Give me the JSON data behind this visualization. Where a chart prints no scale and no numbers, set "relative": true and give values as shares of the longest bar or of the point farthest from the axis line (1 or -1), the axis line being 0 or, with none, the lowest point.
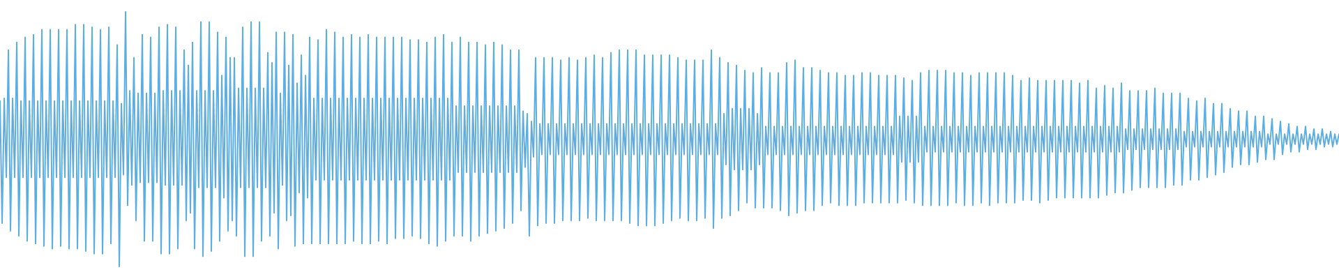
{
  "chart_data": {
    "type": "line",
    "relative": true,
    "line_style": "solid",
    "categories": [
      null,
      null,
      null,
      null,
      null,
      null,
      null,
      null,
      null,
      null,
      null,
      null,
      null,
      null,
      null,
      null,
      null,
      null,
      null,
      null,
      null,
      null,
      null,
      null,
      null,
      null,
      null,
      null,
      null,
      null,
      null,
      null,
      null,
      null,
      null,
      null,
      null,
      null,
      null,
      null,
      null,
      null,
      null,
      null,
      null,
      null,
      null,
      null,
      null,
      null,
      null,
      null,
      null,
      null,
      null,
      null,
      null,
      null,
      null,
      null,
      null,
      null,
      null,
      null,
      null,
      null,
      null,
      null,
      null,
      null,
      null,
      null,
      null,
      null,
      null,
      null,
      null,
      null,
      null,
      null,
      null,
      null,
      null,
      null,
      null,
      null,
      null,
      null,
      null,
      null,
      null,
      null,
      null,
      null,
      null,
      null,
      null,
      null,
      null,
      null,
      null,
      null,
      null,
      null,
      null,
      null,
      null,
      null,
      null,
      null,
      null,
      null,
      null,
      null,
      null,
      null,
      null,
      null,
      null,
      null,
      null,
      null,
      null,
      null,
      null,
      null,
      null,
      null,
      null,
      null,
      null,
      null,
      null,
      null,
      null,
      null,
      null,
      null,
      null,
      null,
      null,
      null,
      null,
      null,
      null,
      null,
      null,
      null,
      null,
      null,
      null,
      null,
      null,
      null,
      null,
      null,
      null,
      null,
      null,
      null,
      null,
      null,
      null,
      null,
      null,
      null,
      null,
      null,
      null,
      null,
      null,
      null,
      null,
      null,
      null,
      null,
      null,
      null,
      null,
      null,
      null,
      null,
      null,
      null,
      null,
      null,
      null,
      null,
      null,
      null,
      null,
      null,
      null,
      null,
      null,
      null,
      null,
      null,
      null,
      null,
      null,
      null,
      null,
      null,
      null,
      null,
      null,
      null,
      null,
      null,
      null,
      null,
      null,
      null,
      null,
      null,
      null,
      null,
      null,
      null,
      null,
      null,
      null,
      null,
      null,
      null,
      null,
      null,
      null,
      null,
      null,
      null,
      null,
      null,
      null,
      null,
      null,
      null,
      null,
      null,
      null,
      null,
      null,
      null,
      null,
      null,
      null,
      null,
      null,
      null,
      null,
      null,
      null,
      null,
      null,
      null,
      null,
      null,
      null,
      null,
      null,
      null,
      null,
      null,
      null,
      null,
      null,
      null,
      null,
      null,
      null,
      null,
      null,
      null,
      null,
      null,
      null,
      null,
      null,
      null,
      null,
      null,
      null,
      null,
      null,
      null,
      null,
      null,
      null,
      null,
      null,
      null,
      null,
      null,
      null,
      null,
      null,
      null,
      null,
      null,
      null,
      null,
      null,
      null,
      null,
      null,
      null,
      null,
      null,
      null,
      null,
      null,
      null,
      null,
      null,
      null,
      null,
      null,
      null,
      null,
      null,
      null,
      null,
      null,
      null,
      null,
      null,
      null,
      null,
      null,
      null,
      null,
      null,
      null,
      null,
      null,
      null,
      null,
      null,
      null,
      null,
      null,
      null,
      null,
      null,
      null,
      null,
      null,
      null,
      null,
      null,
      null,
      null,
      null,
      null,
      null,
      null,
      null,
      null,
      null,
      null,
      null,
      null,
      null,
      null,
      null,
      null,
      null,
      null,
      null,
      null,
      null,
      null,
      null,
      null,
      null,
      null,
      null,
      null,
      null,
      null,
      null,
      null,
      null,
      null,
      null,
      null,
      null,
      null,
      null,
      null,
      null,
      null,
      null,
      null,
      null,
      null,
      null,
      null,
      null,
      null,
      null,
      null,
      null,
      null,
      null,
      null,
      null,
      null,
      null,
      null,
      null,
      null,
      null,
      null,
      null,
      null,
      null,
      null,
      null,
      null,
      null,
      null,
      null,
      null,
      null,
      null,
      null,
      null,
      null,
      null,
      null,
      null,
      null,
      null,
      null,
      null,
      null,
      null,
      null,
      null,
      null,
      null,
      null,
      null,
      null,
      null,
      null,
      null,
      null,
      null,
      null,
      null,
      null,
      null,
      null,
      null,
      null,
      null,
      null,
      null,
      null,
      null,
      null,
      null,
      null,
      null,
      null,
      null,
      null,
      null,
      null,
      null,
      null,
      null,
      null,
      null,
      null,
      null,
      null,
      null,
      null,
      null,
      null,
      null,
      null,
      null,
      null,
      null,
      null,
      null,
      null,
      null,
      null,
      null,
      null,
      null,
      null,
      null,
      null,
      null,
      null,
      null,
      null,
      null,
      null,
      null,
      null,
      null,
      null,
      null,
      null,
      null,
      null,
      null,
      null,
      null,
      null,
      null,
      null,
      null,
      null,
      null,
      null,
      null,
      null,
      null,
      null,
      null,
      null,
      null,
      null,
      null,
      null,
      null,
      null,
      null,
      null,
      null,
      null,
      null,
      null,
      null,
      null,
      null,
      null,
      null,
      null,
      null,
      null,
      null,
      null,
      null,
      null,
      null,
      null,
      null,
      null,
      null,
      null,
      null,
      null,
      null,
      null,
      null,
      null,
      null,
      null,
      null,
      null,
      null,
      null,
      null,
      null,
      null,
      null,
      null,
      null,
      null,
      null,
      null,
      null,
      null,
      null,
      null,
      null,
      null,
      null,
      null,
      null,
      null,
      null,
      null,
      null,
      null,
      null,
      null,
      null,
      null,
      null,
      null,
      null,
      null,
      null,
      null,
      null,
      null,
      null,
      null,
      null,
      null,
      null,
      null,
      null,
      null,
      null,
      null,
      null,
      null,
      null,
      null,
      null,
      null,
      null,
      null,
      null,
      null,
      null,
      null,
      null,
      null,
      null,
      null,
      null,
      null,
      null,
      null,
      null,
      null,
      null,
      null
    ],
    "series": [
      {
        "color": "#5dade2",
        "values": [
          0.65,
          0.17,
          0.66,
          0.35,
          0.85,
          0.14,
          0.66,
          0.35,
          0.88,
          0.12,
          0.65,
          0.35,
          0.9,
          0.1,
          0.65,
          0.35,
          0.91,
          0.09,
          0.65,
          0.35,
          0.93,
          0.08,
          0.65,
          0.35,
          0.93,
          0.07,
          0.65,
          0.35,
          0.93,
          0.08,
          0.65,
          0.35,
          0.93,
          0.07,
          0.65,
          0.35,
          0.95,
          0.07,
          0.65,
          0.35,
          0.95,
          0.06,
          0.65,
          0.35,
          0.94,
          0.05,
          0.65,
          0.35,
          0.93,
          0.05,
          0.65,
          0.35,
          0.94,
          0.09,
          0.65,
          0.35,
          0.87,
          0.0,
          0.64,
          0.36,
          1.0,
          0.24,
          0.69,
          0.32,
          0.82,
          0.18,
          0.68,
          0.33,
          0.91,
          0.1,
          0.68,
          0.33,
          0.9,
          0.1,
          0.68,
          0.33,
          0.94,
          0.05,
          0.69,
          0.32,
          0.95,
          0.05,
          0.69,
          0.32,
          0.94,
          0.07,
          0.69,
          0.32,
          0.85,
          0.18,
          0.79,
          0.21,
          0.88,
          0.07,
          0.69,
          0.31,
          0.96,
          0.04,
          0.69,
          0.31,
          0.96,
          0.06,
          0.69,
          0.31,
          0.92,
          0.1,
          0.75,
          0.27,
          0.9,
          0.14,
          0.82,
          0.18,
          0.82,
          0.12,
          0.7,
          0.31,
          0.94,
          0.04,
          0.7,
          0.31,
          0.96,
          0.04,
          0.7,
          0.31,
          0.96,
          0.1,
          0.7,
          0.31,
          0.84,
          0.12,
          0.8,
          0.21,
          0.92,
          0.07,
          0.68,
          0.32,
          0.92,
          0.18,
          0.79,
          0.2,
          0.91,
          0.08,
          0.72,
          0.29,
          0.83,
          0.09,
          0.75,
          0.27,
          0.9,
          0.09,
          0.66,
          0.34,
          0.89,
          0.09,
          0.66,
          0.34,
          0.93,
          0.09,
          0.66,
          0.34,
          0.92,
          0.09,
          0.66,
          0.34,
          0.9,
          0.09,
          0.66,
          0.34,
          0.91,
          0.1,
          0.66,
          0.34,
          0.9,
          0.09,
          0.66,
          0.34,
          0.91,
          0.09,
          0.66,
          0.34,
          0.9,
          0.1,
          0.66,
          0.34,
          0.9,
          0.09,
          0.66,
          0.34,
          0.9,
          0.11,
          0.66,
          0.34,
          0.9,
          0.11,
          0.66,
          0.34,
          0.89,
          0.12,
          0.66,
          0.34,
          0.89,
          0.11,
          0.66,
          0.34,
          0.88,
          0.09,
          0.66,
          0.34,
          0.9,
          0.08,
          0.66,
          0.34,
          0.91,
          0.1,
          0.66,
          0.34,
          0.88,
          0.12,
          0.63,
          0.37,
          0.9,
          0.12,
          0.63,
          0.37,
          0.88,
          0.1,
          0.63,
          0.37,
          0.88,
          0.12,
          0.63,
          0.37,
          0.87,
          0.13,
          0.63,
          0.37,
          0.88,
          0.14,
          0.63,
          0.37,
          0.87,
          0.15,
          0.63,
          0.37,
          0.85,
          0.17,
          0.63,
          0.37,
          0.85,
          0.22,
          0.61,
          0.39,
          0.6,
          0.12,
          0.57,
          0.43,
          0.82,
          0.16,
          0.56,
          0.44,
          0.82,
          0.17,
          0.56,
          0.44,
          0.82,
          0.17,
          0.56,
          0.44,
          0.81,
          0.18,
          0.56,
          0.44,
          0.82,
          0.18,
          0.56,
          0.44,
          0.81,
          0.18,
          0.56,
          0.44,
          0.82,
          0.19,
          0.56,
          0.44,
          0.83,
          0.18,
          0.56,
          0.44,
          0.82,
          0.18,
          0.56,
          0.44,
          0.84,
          0.18,
          0.56,
          0.44,
          0.85,
          0.18,
          0.56,
          0.44,
          0.85,
          0.17,
          0.56,
          0.44,
          0.85,
          0.16,
          0.56,
          0.44,
          0.83,
          0.16,
          0.56,
          0.44,
          0.83,
          0.16,
          0.56,
          0.44,
          0.83,
          0.17,
          0.56,
          0.44,
          0.83,
          0.18,
          0.56,
          0.44,
          0.82,
          0.19,
          0.56,
          0.44,
          0.81,
          0.18,
          0.56,
          0.44,
          0.81,
          0.18,
          0.56,
          0.44,
          0.81,
          0.19,
          0.56,
          0.44,
          0.85,
          0.15,
          0.56,
          0.44,
          0.82,
          0.19,
          0.6,
          0.4,
          0.8,
          0.2,
          0.62,
          0.38,
          0.79,
          0.22,
          0.62,
          0.38,
          0.77,
          0.25,
          0.62,
          0.38,
          0.76,
          0.23,
          0.6,
          0.4,
          0.78,
          0.23,
          0.55,
          0.44,
          0.76,
          0.23,
          0.55,
          0.44,
          0.76,
          0.22,
          0.55,
          0.44,
          0.8,
          0.2,
          0.55,
          0.44,
          0.81,
          0.21,
          0.55,
          0.44,
          0.78,
          0.22,
          0.55,
          0.44,
          0.78,
          0.22,
          0.55,
          0.44,
          0.77,
          0.24,
          0.55,
          0.44,
          0.76,
          0.25,
          0.55,
          0.44,
          0.76,
          0.24,
          0.55,
          0.44,
          0.75,
          0.24,
          0.55,
          0.44,
          0.75,
          0.24,
          0.55,
          0.44,
          0.76,
          0.25,
          0.55,
          0.44,
          0.76,
          0.25,
          0.55,
          0.44,
          0.75,
          0.25,
          0.55,
          0.44,
          0.75,
          0.25,
          0.55,
          0.44,
          0.75,
          0.25,
          0.59,
          0.41,
          0.74,
          0.26,
          0.59,
          0.41,
          0.73,
          0.25,
          0.59,
          0.41,
          0.76,
          0.24,
          0.55,
          0.45,
          0.77,
          0.24,
          0.55,
          0.45,
          0.77,
          0.24,
          0.55,
          0.45,
          0.77,
          0.24,
          0.55,
          0.45,
          0.76,
          0.25,
          0.55,
          0.45,
          0.76,
          0.24,
          0.55,
          0.45,
          0.75,
          0.24,
          0.55,
          0.45,
          0.76,
          0.25,
          0.55,
          0.45,
          0.76,
          0.24,
          0.55,
          0.45,
          0.76,
          0.25,
          0.55,
          0.45,
          0.76,
          0.25,
          0.55,
          0.45,
          0.75,
          0.25,
          0.55,
          0.45,
          0.73,
          0.26,
          0.55,
          0.45,
          0.74,
          0.26,
          0.55,
          0.45,
          0.73,
          0.25,
          0.55,
          0.45,
          0.73,
          0.26,
          0.55,
          0.45,
          0.73,
          0.27,
          0.55,
          0.45,
          0.73,
          0.27,
          0.55,
          0.45,
          0.73,
          0.27,
          0.55,
          0.45,
          0.72,
          0.27,
          0.55,
          0.45,
          0.73,
          0.27,
          0.55,
          0.45,
          0.7,
          0.27,
          0.55,
          0.45,
          0.71,
          0.28,
          0.55,
          0.45,
          0.7,
          0.29,
          0.55,
          0.45,
          0.72,
          0.29,
          0.54,
          0.46,
          0.69,
          0.3,
          0.54,
          0.46,
          0.69,
          0.31,
          0.54,
          0.46,
          0.69,
          0.31,
          0.54,
          0.46,
          0.7,
          0.31,
          0.54,
          0.46,
          0.68,
          0.31,
          0.54,
          0.46,
          0.68,
          0.32,
          0.54,
          0.46,
          0.68,
          0.32,
          0.53,
          0.47,
          0.66,
          0.34,
          0.53,
          0.47,
          0.65,
          0.34,
          0.53,
          0.47,
          0.66,
          0.35,
          0.53,
          0.47,
          0.64,
          0.36,
          0.53,
          0.47,
          0.64,
          0.37,
          0.53,
          0.47,
          0.62,
          0.39,
          0.53,
          0.47,
          0.61,
          0.4,
          0.53,
          0.47,
          0.61,
          0.4,
          0.53,
          0.47,
          0.59,
          0.41,
          0.53,
          0.47,
          0.59,
          0.42,
          0.52,
          0.48,
          0.58,
          0.42,
          0.52,
          0.48,
          0.57,
          0.44,
          0.52,
          0.48,
          0.56,
          0.45,
          0.52,
          0.48,
          0.55,
          0.45,
          0.52,
          0.48,
          0.55,
          0.46,
          0.52,
          0.48,
          0.54,
          0.46,
          0.52,
          0.48,
          0.54,
          0.47,
          0.52,
          0.48,
          0.53,
          0.47,
          0.52,
          0.48,
          0.52
        ]
      }
    ]
  }
}
